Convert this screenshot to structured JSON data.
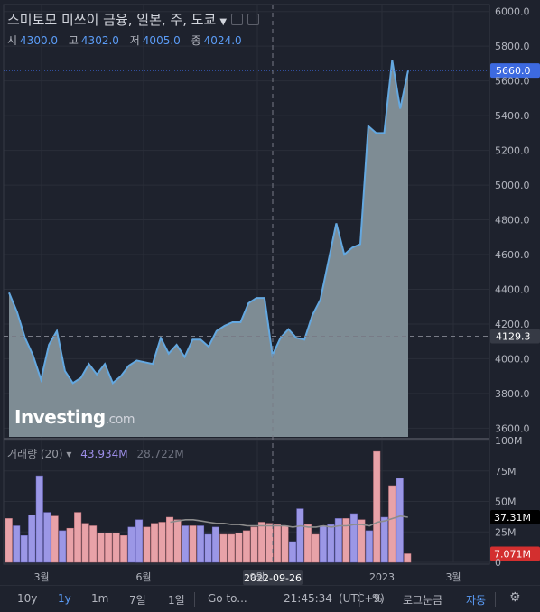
{
  "header": {
    "title": "스미토모 미쓰이 금융, 일본, 주, 도쿄",
    "ohlc": [
      {
        "label": "시",
        "value": "4300.0"
      },
      {
        "label": "고",
        "value": "4302.0"
      },
      {
        "label": "저",
        "value": "4005.0"
      },
      {
        "label": "종",
        "value": "4024.0"
      }
    ]
  },
  "volume_legend": {
    "name": "거래량 (20)",
    "value1": "43.934M",
    "value2": "28.722M"
  },
  "logo": {
    "main": "Investing",
    "suffix": ".com"
  },
  "crosshair": {
    "date_label": "2022-09-26",
    "price_label": "4129.3"
  },
  "last_price_label": "5660.0",
  "volume_labels": {
    "ma": "37.31M",
    "last": "7.071M"
  },
  "toolbar": {
    "ranges": [
      "10y",
      "1y",
      "1m",
      "7일",
      "1일"
    ],
    "active_range": "1y",
    "goto": "Go to...",
    "time": "21:45:34",
    "tz": "(UTC+9)",
    "percent": "%",
    "log": "로그눈금",
    "auto": "자동"
  },
  "colors": {
    "up": "#e8a2a8",
    "down": "#9b97e6",
    "area_fill": "#7e8c94",
    "area_line": "#64a8e0",
    "last_price": "#3d6ae0",
    "last_volume": "#d32f2f"
  },
  "chart_data": [
    {
      "type": "area",
      "series": [
        {
          "values": [
            4380,
            4270,
            4120,
            4020,
            3880,
            4080,
            4160,
            3930,
            3860,
            3890,
            3970,
            3910,
            3970,
            3860,
            3900,
            3960,
            3990,
            3980,
            3970,
            4120,
            4030,
            4080,
            4010,
            4110,
            4110,
            4070,
            4160,
            4190,
            4210,
            4210,
            4320,
            4350,
            4350,
            4020,
            4120,
            4170,
            4120,
            4110,
            4250,
            4340,
            4560,
            4780,
            4600,
            4640,
            4660,
            5340,
            5300,
            5300,
            5720,
            5440,
            5660
          ]
        }
      ],
      "x_ticks": [
        "3월",
        "6월",
        "9월",
        "2023",
        "3월"
      ],
      "y_ticks": [
        3600,
        3800,
        4000,
        4200,
        4400,
        4600,
        4800,
        5000,
        5200,
        5400,
        5600,
        5800,
        6000
      ],
      "ylim": [
        3550,
        6040
      ],
      "grid": true
    },
    {
      "type": "bar",
      "values": [
        36,
        30,
        22,
        39,
        71,
        41,
        38,
        26,
        28,
        41,
        32,
        30,
        24,
        24,
        24,
        22,
        29,
        35,
        29,
        32,
        33,
        37,
        35,
        30,
        30,
        30,
        23,
        29,
        23,
        23,
        24,
        26,
        29,
        33,
        32,
        31,
        30,
        17,
        44,
        31,
        23,
        30,
        31,
        36,
        36,
        40,
        35,
        26,
        91,
        37,
        63,
        69,
        7
      ],
      "up": [
        true,
        false,
        false,
        false,
        false,
        false,
        true,
        false,
        true,
        true,
        true,
        true,
        true,
        true,
        true,
        true,
        false,
        false,
        true,
        true,
        true,
        true,
        true,
        false,
        true,
        false,
        false,
        false,
        true,
        true,
        true,
        true,
        true,
        true,
        true,
        true,
        true,
        false,
        false,
        true,
        true,
        false,
        false,
        false,
        true,
        false,
        true,
        false,
        true,
        false,
        true,
        false,
        true
      ],
      "ma": [
        null,
        null,
        null,
        null,
        null,
        null,
        null,
        null,
        null,
        null,
        null,
        null,
        null,
        null,
        null,
        null,
        null,
        null,
        null,
        null,
        null,
        33,
        34,
        35,
        35,
        34,
        33,
        32,
        32,
        31,
        31,
        30,
        30,
        30,
        30,
        30,
        30,
        29,
        30,
        29,
        29,
        30,
        29,
        30,
        30,
        31,
        31,
        30,
        33,
        34,
        36,
        38,
        37
      ],
      "y_ticks": [
        0,
        25,
        50,
        75,
        100
      ],
      "y_tick_labels": [
        "0",
        "25M",
        "50M",
        "75M",
        "100M"
      ],
      "ylim": [
        0,
        100
      ]
    }
  ]
}
